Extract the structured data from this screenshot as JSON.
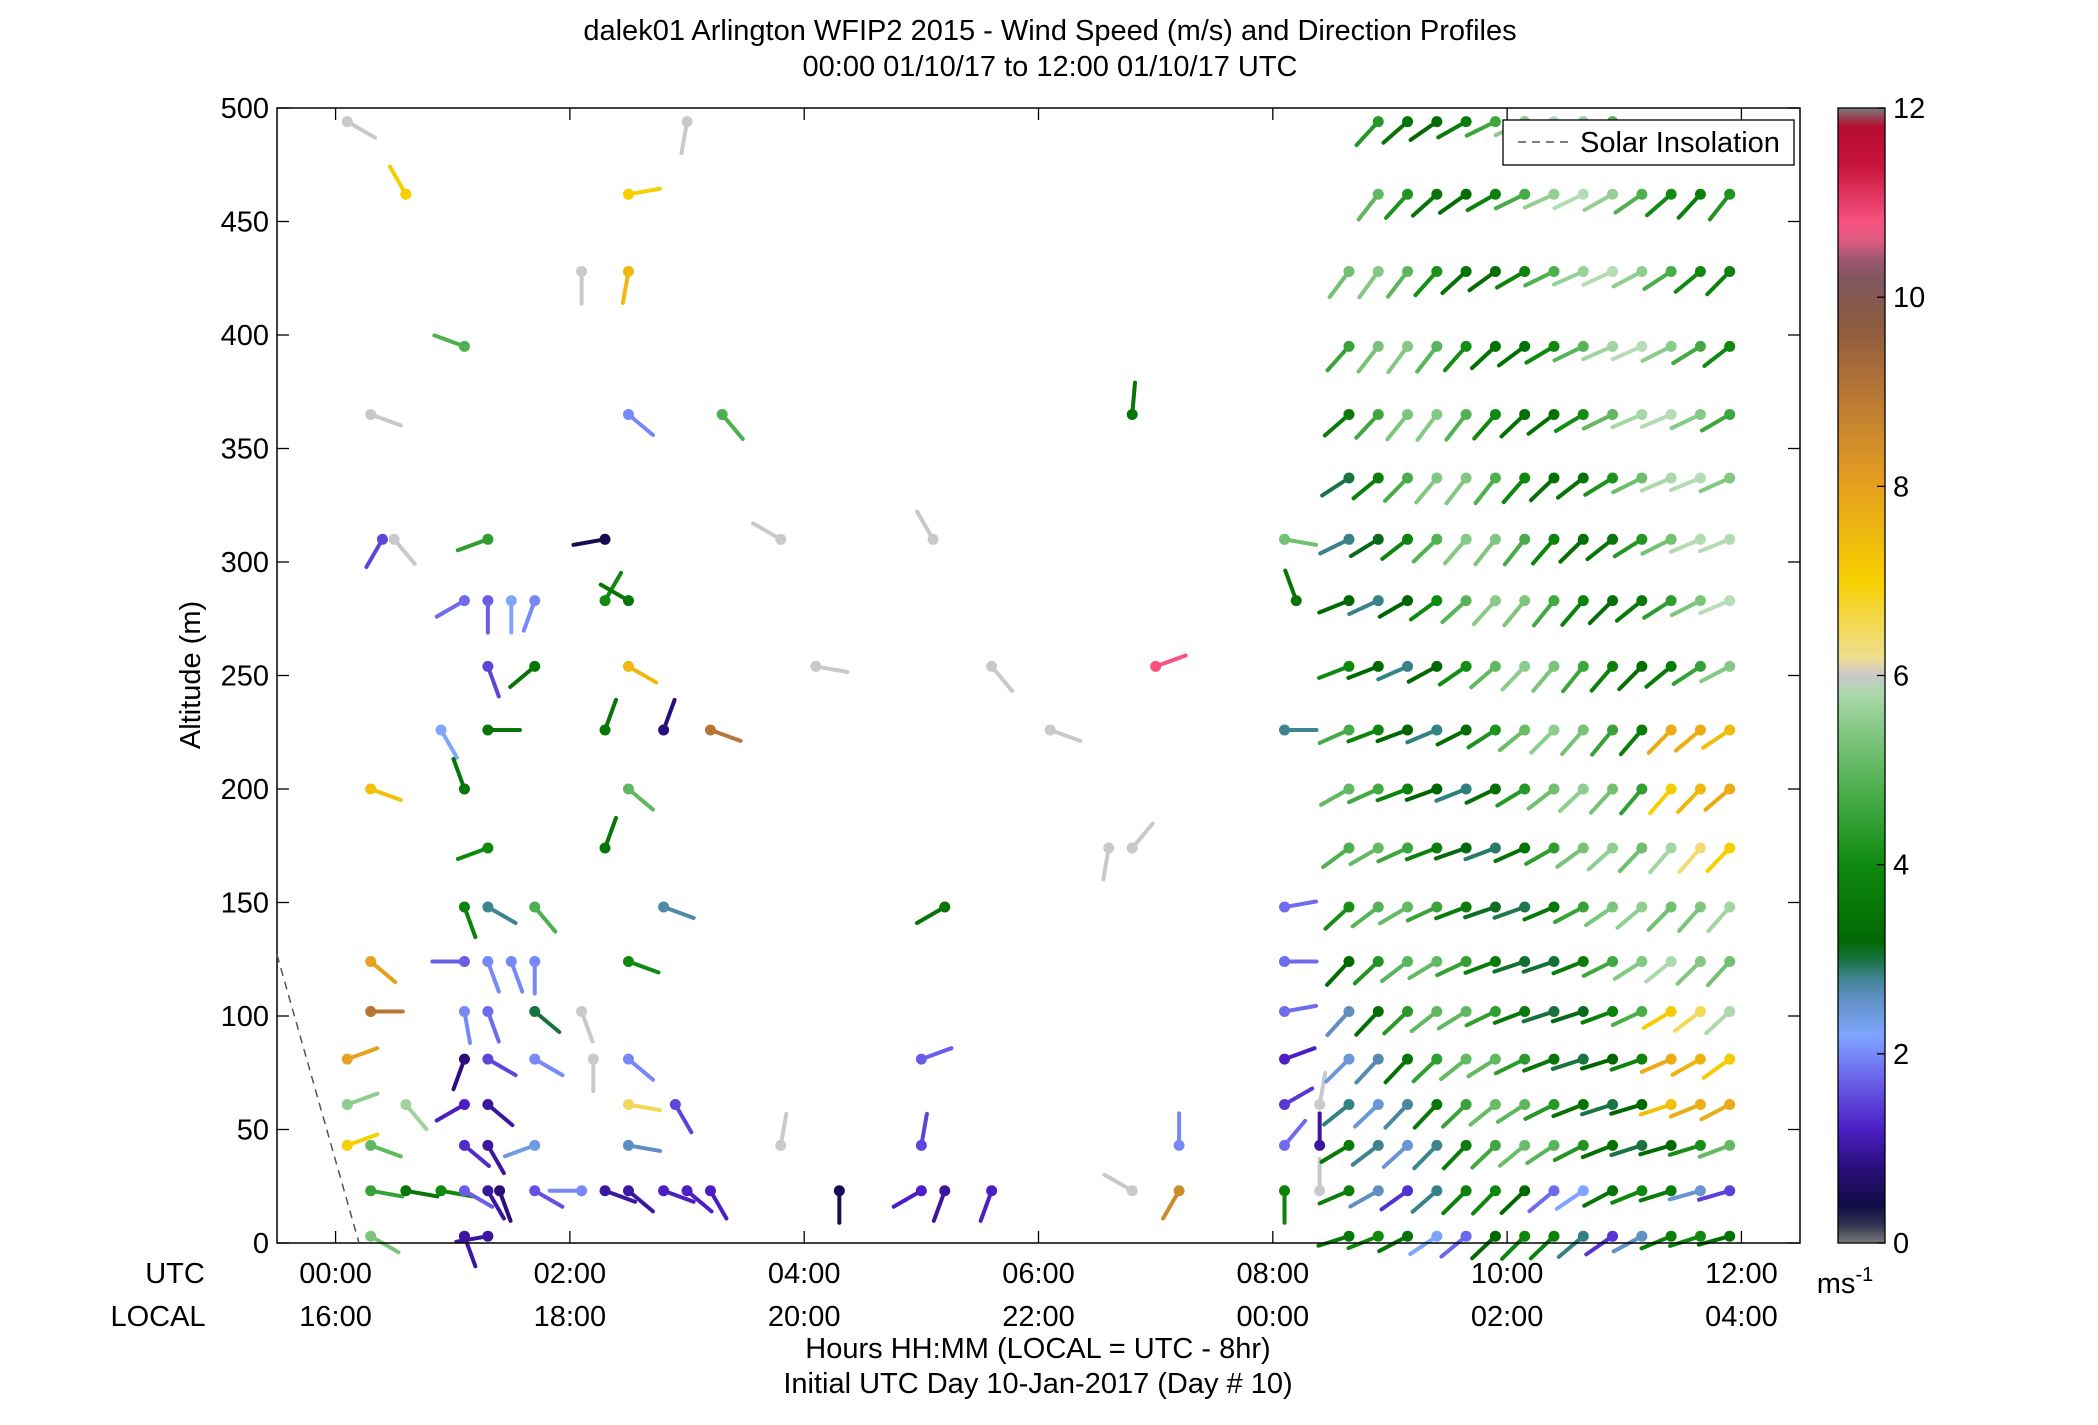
{
  "chart_data": {
    "type": "scatter",
    "title": "dalek01 Arlington WFIP2 2015 - Wind Speed (m/s) and Direction Profiles",
    "subtitle": "00:00 01/10/17 to 12:00 01/10/17  UTC",
    "ylabel": "Altitude (m)",
    "xlabel": "Hours HH:MM  (LOCAL = UTC - 8hr)",
    "xlabel2": "Initial UTC Day 10-Jan-2017 (Day # 10)",
    "row_labels": [
      "UTC",
      "LOCAL"
    ],
    "xlim": [
      -0.5,
      12.5
    ],
    "ylim": [
      0,
      500
    ],
    "x_ticks": [
      0,
      2,
      4,
      6,
      8,
      10,
      12
    ],
    "x_tick_labels_utc": [
      "00:00",
      "02:00",
      "04:00",
      "06:00",
      "08:00",
      "10:00",
      "12:00"
    ],
    "x_tick_labels_local": [
      "16:00",
      "18:00",
      "20:00",
      "22:00",
      "00:00",
      "02:00",
      "04:00"
    ],
    "y_ticks": [
      0,
      50,
      100,
      150,
      200,
      250,
      300,
      350,
      400,
      450,
      500
    ],
    "y_tick_labels": [
      "0",
      "50",
      "100",
      "150",
      "200",
      "250",
      "300",
      "350",
      "400",
      "450",
      "500"
    ],
    "grid": false,
    "legend": {
      "position": "top-right",
      "entries": [
        "Solar Insolation"
      ]
    },
    "colorbar": {
      "min": 0,
      "max": 12,
      "ticks": [
        0,
        2,
        4,
        6,
        8,
        10,
        12
      ],
      "tick_labels": [
        "0",
        "2",
        "4",
        "6",
        "8",
        "10",
        "12"
      ],
      "unit_label": "ms",
      "unit_exp": "-1"
    },
    "solar_insolation": {
      "x": [
        -0.5,
        0.2
      ],
      "y": [
        127,
        0
      ]
    },
    "levels": [
      3,
      23,
      43,
      61,
      81,
      102,
      124,
      148,
      174,
      200,
      226,
      254,
      283,
      310,
      337,
      365,
      395,
      428,
      462,
      494
    ],
    "barbs": [
      {
        "x": 0.1,
        "y": 494,
        "speed": 6.0,
        "dir": 120
      },
      {
        "x": 0.3,
        "y": 365,
        "speed": 6.0,
        "dir": 110
      },
      {
        "x": 0.3,
        "y": 200,
        "speed": 7.3,
        "dir": 110
      },
      {
        "x": 0.3,
        "y": 124,
        "speed": 8.0,
        "dir": 130
      },
      {
        "x": 0.3,
        "y": 102,
        "speed": 9.0,
        "dir": 90
      },
      {
        "x": 0.1,
        "y": 81,
        "speed": 8.0,
        "dir": 70
      },
      {
        "x": 0.1,
        "y": 61,
        "speed": 5.5,
        "dir": 70
      },
      {
        "x": 0.1,
        "y": 43,
        "speed": 7.0,
        "dir": 70
      },
      {
        "x": 0.3,
        "y": 43,
        "speed": 5.0,
        "dir": 110
      },
      {
        "x": 0.3,
        "y": 23,
        "speed": 4.5,
        "dir": 100
      },
      {
        "x": 0.3,
        "y": 3,
        "speed": 5.3,
        "dir": 120
      },
      {
        "x": 0.6,
        "y": 462,
        "speed": 7.0,
        "dir": 330
      },
      {
        "x": 0.4,
        "y": 310,
        "speed": 1.5,
        "dir": 210
      },
      {
        "x": 0.5,
        "y": 310,
        "speed": 6.0,
        "dir": 140
      },
      {
        "x": 0.6,
        "y": 61,
        "speed": 5.7,
        "dir": 140
      },
      {
        "x": 0.6,
        "y": 23,
        "speed": 3.5,
        "dir": 100
      },
      {
        "x": 0.9,
        "y": 23,
        "speed": 4.0,
        "dir": 100
      },
      {
        "x": 1.1,
        "y": 395,
        "speed": 4.8,
        "dir": 290
      },
      {
        "x": 0.9,
        "y": 226,
        "speed": 2.2,
        "dir": 150
      },
      {
        "x": 1.1,
        "y": 200,
        "speed": 3.5,
        "dir": 340
      },
      {
        "x": 1.3,
        "y": 174,
        "speed": 4.0,
        "dir": 250
      },
      {
        "x": 1.1,
        "y": 148,
        "speed": 3.8,
        "dir": 160
      },
      {
        "x": 1.3,
        "y": 148,
        "speed": 2.8,
        "dir": 120
      },
      {
        "x": 1.1,
        "y": 124,
        "speed": 1.7,
        "dir": 270
      },
      {
        "x": 1.3,
        "y": 124,
        "speed": 2.0,
        "dir": 160
      },
      {
        "x": 1.1,
        "y": 102,
        "speed": 2.0,
        "dir": 170
      },
      {
        "x": 1.3,
        "y": 102,
        "speed": 1.8,
        "dir": 160
      },
      {
        "x": 1.1,
        "y": 81,
        "speed": 0.8,
        "dir": 200
      },
      {
        "x": 1.3,
        "y": 81,
        "speed": 1.5,
        "dir": 120
      },
      {
        "x": 1.1,
        "y": 61,
        "speed": 1.2,
        "dir": 240
      },
      {
        "x": 1.3,
        "y": 61,
        "speed": 1.0,
        "dir": 130
      },
      {
        "x": 1.1,
        "y": 43,
        "speed": 1.3,
        "dir": 130
      },
      {
        "x": 1.3,
        "y": 43,
        "speed": 1.0,
        "dir": 150
      },
      {
        "x": 1.1,
        "y": 23,
        "speed": 1.7,
        "dir": 120
      },
      {
        "x": 1.3,
        "y": 23,
        "speed": 1.0,
        "dir": 150
      },
      {
        "x": 1.1,
        "y": 3,
        "speed": 1.0,
        "dir": 160
      },
      {
        "x": 1.3,
        "y": 3,
        "speed": 1.0,
        "dir": 260
      },
      {
        "x": 1.4,
        "y": 23,
        "speed": 0.8,
        "dir": 160
      },
      {
        "x": 1.1,
        "y": 283,
        "speed": 1.8,
        "dir": 240
      },
      {
        "x": 1.3,
        "y": 283,
        "speed": 1.7,
        "dir": 180
      },
      {
        "x": 1.5,
        "y": 283,
        "speed": 2.2,
        "dir": 180
      },
      {
        "x": 1.7,
        "y": 283,
        "speed": 2.0,
        "dir": 200
      },
      {
        "x": 1.3,
        "y": 310,
        "speed": 4.4,
        "dir": 250
      },
      {
        "x": 1.3,
        "y": 254,
        "speed": 1.5,
        "dir": 160
      },
      {
        "x": 1.7,
        "y": 254,
        "speed": 3.5,
        "dir": 230
      },
      {
        "x": 1.3,
        "y": 226,
        "speed": 3.5,
        "dir": 90
      },
      {
        "x": 1.5,
        "y": 124,
        "speed": 2.0,
        "dir": 160
      },
      {
        "x": 1.7,
        "y": 124,
        "speed": 2.0,
        "dir": 180
      },
      {
        "x": 1.7,
        "y": 148,
        "speed": 4.8,
        "dir": 140
      },
      {
        "x": 1.7,
        "y": 102,
        "speed": 3.0,
        "dir": 130
      },
      {
        "x": 1.7,
        "y": 81,
        "speed": 2.0,
        "dir": 120
      },
      {
        "x": 1.7,
        "y": 43,
        "speed": 2.4,
        "dir": 250
      },
      {
        "x": 1.7,
        "y": 23,
        "speed": 1.6,
        "dir": 120
      },
      {
        "x": 2.1,
        "y": 428,
        "speed": 6.0,
        "dir": 180
      },
      {
        "x": 2.1,
        "y": 102,
        "speed": 6.0,
        "dir": 160
      },
      {
        "x": 2.1,
        "y": 23,
        "speed": 2.0,
        "dir": 270
      },
      {
        "x": 2.3,
        "y": 310,
        "speed": 0.5,
        "dir": 260
      },
      {
        "x": 2.3,
        "y": 283,
        "speed": 4.0,
        "dir": 30
      },
      {
        "x": 2.3,
        "y": 226,
        "speed": 3.5,
        "dir": 20
      },
      {
        "x": 2.3,
        "y": 174,
        "speed": 3.5,
        "dir": 20
      },
      {
        "x": 2.3,
        "y": 23,
        "speed": 1.0,
        "dir": 110
      },
      {
        "x": 2.5,
        "y": 462,
        "speed": 7.0,
        "dir": 80
      },
      {
        "x": 2.5,
        "y": 428,
        "speed": 7.5,
        "dir": 190
      },
      {
        "x": 2.5,
        "y": 365,
        "speed": 2.0,
        "dir": 130
      },
      {
        "x": 2.5,
        "y": 283,
        "speed": 3.5,
        "dir": 300
      },
      {
        "x": 2.5,
        "y": 254,
        "speed": 7.5,
        "dir": 120
      },
      {
        "x": 2.5,
        "y": 200,
        "speed": 5.0,
        "dir": 130
      },
      {
        "x": 2.5,
        "y": 124,
        "speed": 4.0,
        "dir": 110
      },
      {
        "x": 2.5,
        "y": 81,
        "speed": 2.0,
        "dir": 130
      },
      {
        "x": 2.5,
        "y": 61,
        "speed": 6.5,
        "dir": 100
      },
      {
        "x": 2.5,
        "y": 43,
        "speed": 2.6,
        "dir": 100
      },
      {
        "x": 2.5,
        "y": 23,
        "speed": 1.0,
        "dir": 130
      },
      {
        "x": 2.2,
        "y": 81,
        "speed": 6.0,
        "dir": 180
      },
      {
        "x": 2.8,
        "y": 226,
        "speed": 0.8,
        "dir": 20
      },
      {
        "x": 2.8,
        "y": 148,
        "speed": 2.7,
        "dir": 110
      },
      {
        "x": 2.8,
        "y": 23,
        "speed": 1.2,
        "dir": 110
      },
      {
        "x": 3.0,
        "y": 494,
        "speed": 6.0,
        "dir": 190
      },
      {
        "x": 2.9,
        "y": 61,
        "speed": 1.5,
        "dir": 150
      },
      {
        "x": 3.0,
        "y": 23,
        "speed": 1.2,
        "dir": 130
      },
      {
        "x": 3.2,
        "y": 23,
        "speed": 1.2,
        "dir": 150
      },
      {
        "x": 3.2,
        "y": 226,
        "speed": 9.0,
        "dir": 110
      },
      {
        "x": 3.3,
        "y": 365,
        "speed": 4.8,
        "dir": 140
      },
      {
        "x": 3.8,
        "y": 310,
        "speed": 6.0,
        "dir": 300
      },
      {
        "x": 3.8,
        "y": 43,
        "speed": 6.0,
        "dir": 10
      },
      {
        "x": 4.1,
        "y": 254,
        "speed": 6.0,
        "dir": 100
      },
      {
        "x": 4.3,
        "y": 23,
        "speed": 0.5,
        "dir": 180
      },
      {
        "x": 5.1,
        "y": 310,
        "speed": 6.0,
        "dir": 330
      },
      {
        "x": 5.0,
        "y": 81,
        "speed": 1.7,
        "dir": 70
      },
      {
        "x": 5.0,
        "y": 43,
        "speed": 1.5,
        "dir": 10
      },
      {
        "x": 5.0,
        "y": 23,
        "speed": 1.2,
        "dir": 240
      },
      {
        "x": 5.2,
        "y": 23,
        "speed": 1.0,
        "dir": 200
      },
      {
        "x": 5.2,
        "y": 148,
        "speed": 3.5,
        "dir": 240
      },
      {
        "x": 5.6,
        "y": 23,
        "speed": 1.2,
        "dir": 200
      },
      {
        "x": 5.6,
        "y": 254,
        "speed": 6.0,
        "dir": 140
      },
      {
        "x": 6.1,
        "y": 226,
        "speed": 6.0,
        "dir": 110
      },
      {
        "x": 6.6,
        "y": 174,
        "speed": 6.0,
        "dir": 190
      },
      {
        "x": 6.8,
        "y": 174,
        "speed": 6.0,
        "dir": 40
      },
      {
        "x": 6.8,
        "y": 365,
        "speed": 3.5,
        "dir": 5
      },
      {
        "x": 6.8,
        "y": 23,
        "speed": 6.0,
        "dir": 300
      },
      {
        "x": 7.0,
        "y": 254,
        "speed": 10.8,
        "dir": 70
      },
      {
        "x": 7.2,
        "y": 23,
        "speed": 8.5,
        "dir": 210
      },
      {
        "x": 7.2,
        "y": 43,
        "speed": 2.0,
        "dir": 0
      },
      {
        "x": 8.1,
        "y": 310,
        "speed": 5.2,
        "dir": 100
      },
      {
        "x": 8.2,
        "y": 283,
        "speed": 3.5,
        "dir": 340
      },
      {
        "x": 8.1,
        "y": 226,
        "speed": 2.8,
        "dir": 90
      },
      {
        "x": 8.1,
        "y": 148,
        "speed": 1.8,
        "dir": 80
      },
      {
        "x": 8.1,
        "y": 124,
        "speed": 1.8,
        "dir": 90
      },
      {
        "x": 8.1,
        "y": 102,
        "speed": 1.8,
        "dir": 80
      },
      {
        "x": 8.1,
        "y": 81,
        "speed": 1.2,
        "dir": 70
      },
      {
        "x": 8.1,
        "y": 61,
        "speed": 1.4,
        "dir": 60
      },
      {
        "x": 8.1,
        "y": 43,
        "speed": 1.8,
        "dir": 40
      },
      {
        "x": 8.1,
        "y": 23,
        "speed": 3.8,
        "dir": 180
      },
      {
        "x": 8.4,
        "y": 61,
        "speed": 6.0,
        "dir": 10
      },
      {
        "x": 8.4,
        "y": 43,
        "speed": 1.0,
        "dir": 0
      },
      {
        "x": 8.4,
        "y": 23,
        "speed": 6.0,
        "dir": 0
      }
    ],
    "dense_start_x": 8.4,
    "dense_end_x": 12.0,
    "dense_step": 0.25
  },
  "legend_label": "Solar Insolation"
}
